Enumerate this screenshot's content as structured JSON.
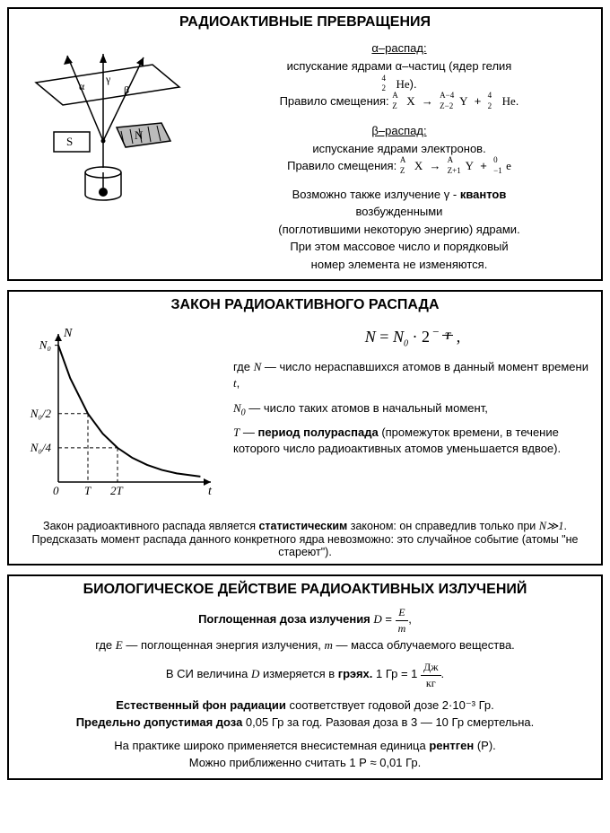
{
  "panel1": {
    "title": "РАДИОАКТИВНЫЕ ПРЕВРАЩЕНИЯ",
    "alpha": {
      "heading": "α–распад:",
      "line1": "испускание ядрами α–частиц (ядер гелия",
      "he_A": "4",
      "he_Z": "2",
      "he_sym": "He",
      "he_tail": ").",
      "rule_label": "Правило смещения:",
      "lhs_A": "A",
      "lhs_Z": "Z",
      "lhs_sym": "X",
      "arrow": "→",
      "rhs1_A": "A−4",
      "rhs1_Z": "Z−2",
      "rhs1_sym": "Y",
      "plus": "+",
      "rhs2_A": "4",
      "rhs2_Z": "2",
      "rhs2_sym": "He",
      "dot": "."
    },
    "beta": {
      "heading": "β–распад:",
      "line1": "испускание ядрами электронов.",
      "rule_label": "Правило смещения:",
      "lhs_A": "A",
      "lhs_Z": "Z",
      "lhs_sym": "X",
      "arrow": "→",
      "rhs1_A": "A",
      "rhs1_Z": "Z+1",
      "rhs1_sym": "Y",
      "plus": "+",
      "rhs2_A": "0",
      "rhs2_Z": "−1",
      "rhs2_sym": "e"
    },
    "gamma": {
      "l1a": "Возможно также излучение γ - ",
      "l1b": "квантов",
      "l2": "возбужденными",
      "l3": "(поглотившими некоторую энергию) ядрами.",
      "l4": "При этом массовое число и порядковый",
      "l5": "номер элемента не изменяются."
    },
    "diagram": {
      "labels": {
        "alpha": "α",
        "gamma": "γ",
        "beta": "β",
        "S": "S",
        "N": "N"
      },
      "lineColor": "#000000",
      "fillHatch": "#000000"
    }
  },
  "panel2": {
    "title": "ЗАКОН РАДИОАКТИВНОГО РАСПАДА",
    "formula": {
      "lhs": "N",
      "eq": "=",
      "N0": "N",
      "N0sub": "0",
      "dot": "·",
      "base": "2",
      "exp_frac_num": "t",
      "exp_frac_den": "T",
      "exp_neg": "−",
      "comma": ","
    },
    "defs": {
      "n_label": "где ",
      "n_sym": "N",
      "n_dash": " — ",
      "n_text": "число нераспавшихся атомов в данный момент времени ",
      "n_t": "t",
      "n_comma": ",",
      "n0_sym": "N",
      "n0_sub": "0",
      "n0_dash": " — ",
      "n0_text": "число таких атомов в начальный момент,",
      "T_sym": "T",
      "T_dash": " — ",
      "T_bold": "период полураспада",
      "T_text": " (промежуток времени, в течение которого число радиоактивных атомов уменьшается вдвое)."
    },
    "footnote": {
      "a": "Закон радиоактивного распада является ",
      "b": "статистическим",
      "c": " законом: он справедлив только при ",
      "d": "N≫1",
      "e": ". Предсказать момент распада данного конкретного ядра невозможно: это случайное событие (атомы \"не стареют\")."
    },
    "chart": {
      "axis_x": "t",
      "axis_y": "N",
      "y_ticks": [
        "N₀",
        "N₀/2",
        "N₀/4"
      ],
      "x_ticks": [
        "0",
        "T",
        "2T"
      ],
      "lineColor": "#000000",
      "lineWidth": 2.0,
      "axisColor": "#000000",
      "xlim": [
        0,
        5
      ],
      "ylim": [
        0,
        1.05
      ],
      "points": [
        [
          0,
          1.0
        ],
        [
          0.4,
          0.76
        ],
        [
          1,
          0.5
        ],
        [
          1.5,
          0.354
        ],
        [
          2,
          0.25
        ],
        [
          2.5,
          0.177
        ],
        [
          3,
          0.125
        ],
        [
          3.5,
          0.088
        ],
        [
          4,
          0.063
        ],
        [
          4.8,
          0.04
        ]
      ]
    }
  },
  "panel3": {
    "title": "БИОЛОГИЧЕСКОЕ ДЕЙСТВИЕ РАДИОАКТИВНЫХ ИЗЛУЧЕНИЙ",
    "l1a": "Поглощенная доза излучения ",
    "l1D": "D",
    "l1eq": " = ",
    "l1num": "E",
    "l1den": "m",
    "l1comma": ",",
    "l2a": "где ",
    "l2E": "E",
    "l2b": " — поглощенная энергия излучения, ",
    "l2m": "m",
    "l2c": " — масса облучаемого вещества.",
    "l3a": "В СИ величина ",
    "l3D": "D",
    "l3b": " измеряется в ",
    "l3bold": "грэях.",
    "l3c": " 1 Гр = 1 ",
    "l3num": "Дж",
    "l3den": "кг",
    "l3dot": ".",
    "l4a": "Естественный фон радиации",
    "l4b": " соответствует годовой дозе 2·10⁻³ Гр.",
    "l5a": "Предельно допустимая доза",
    "l5b": " 0,05 Гр за год. Разовая доза в 3 — 10 Гр смертельна.",
    "l6a": "На практике широко применяется внесистемная единица ",
    "l6b": "рентген",
    "l6c": " (Р).",
    "l7": "Можно приближенно считать 1 Р ≈ 0,01 Гр."
  }
}
